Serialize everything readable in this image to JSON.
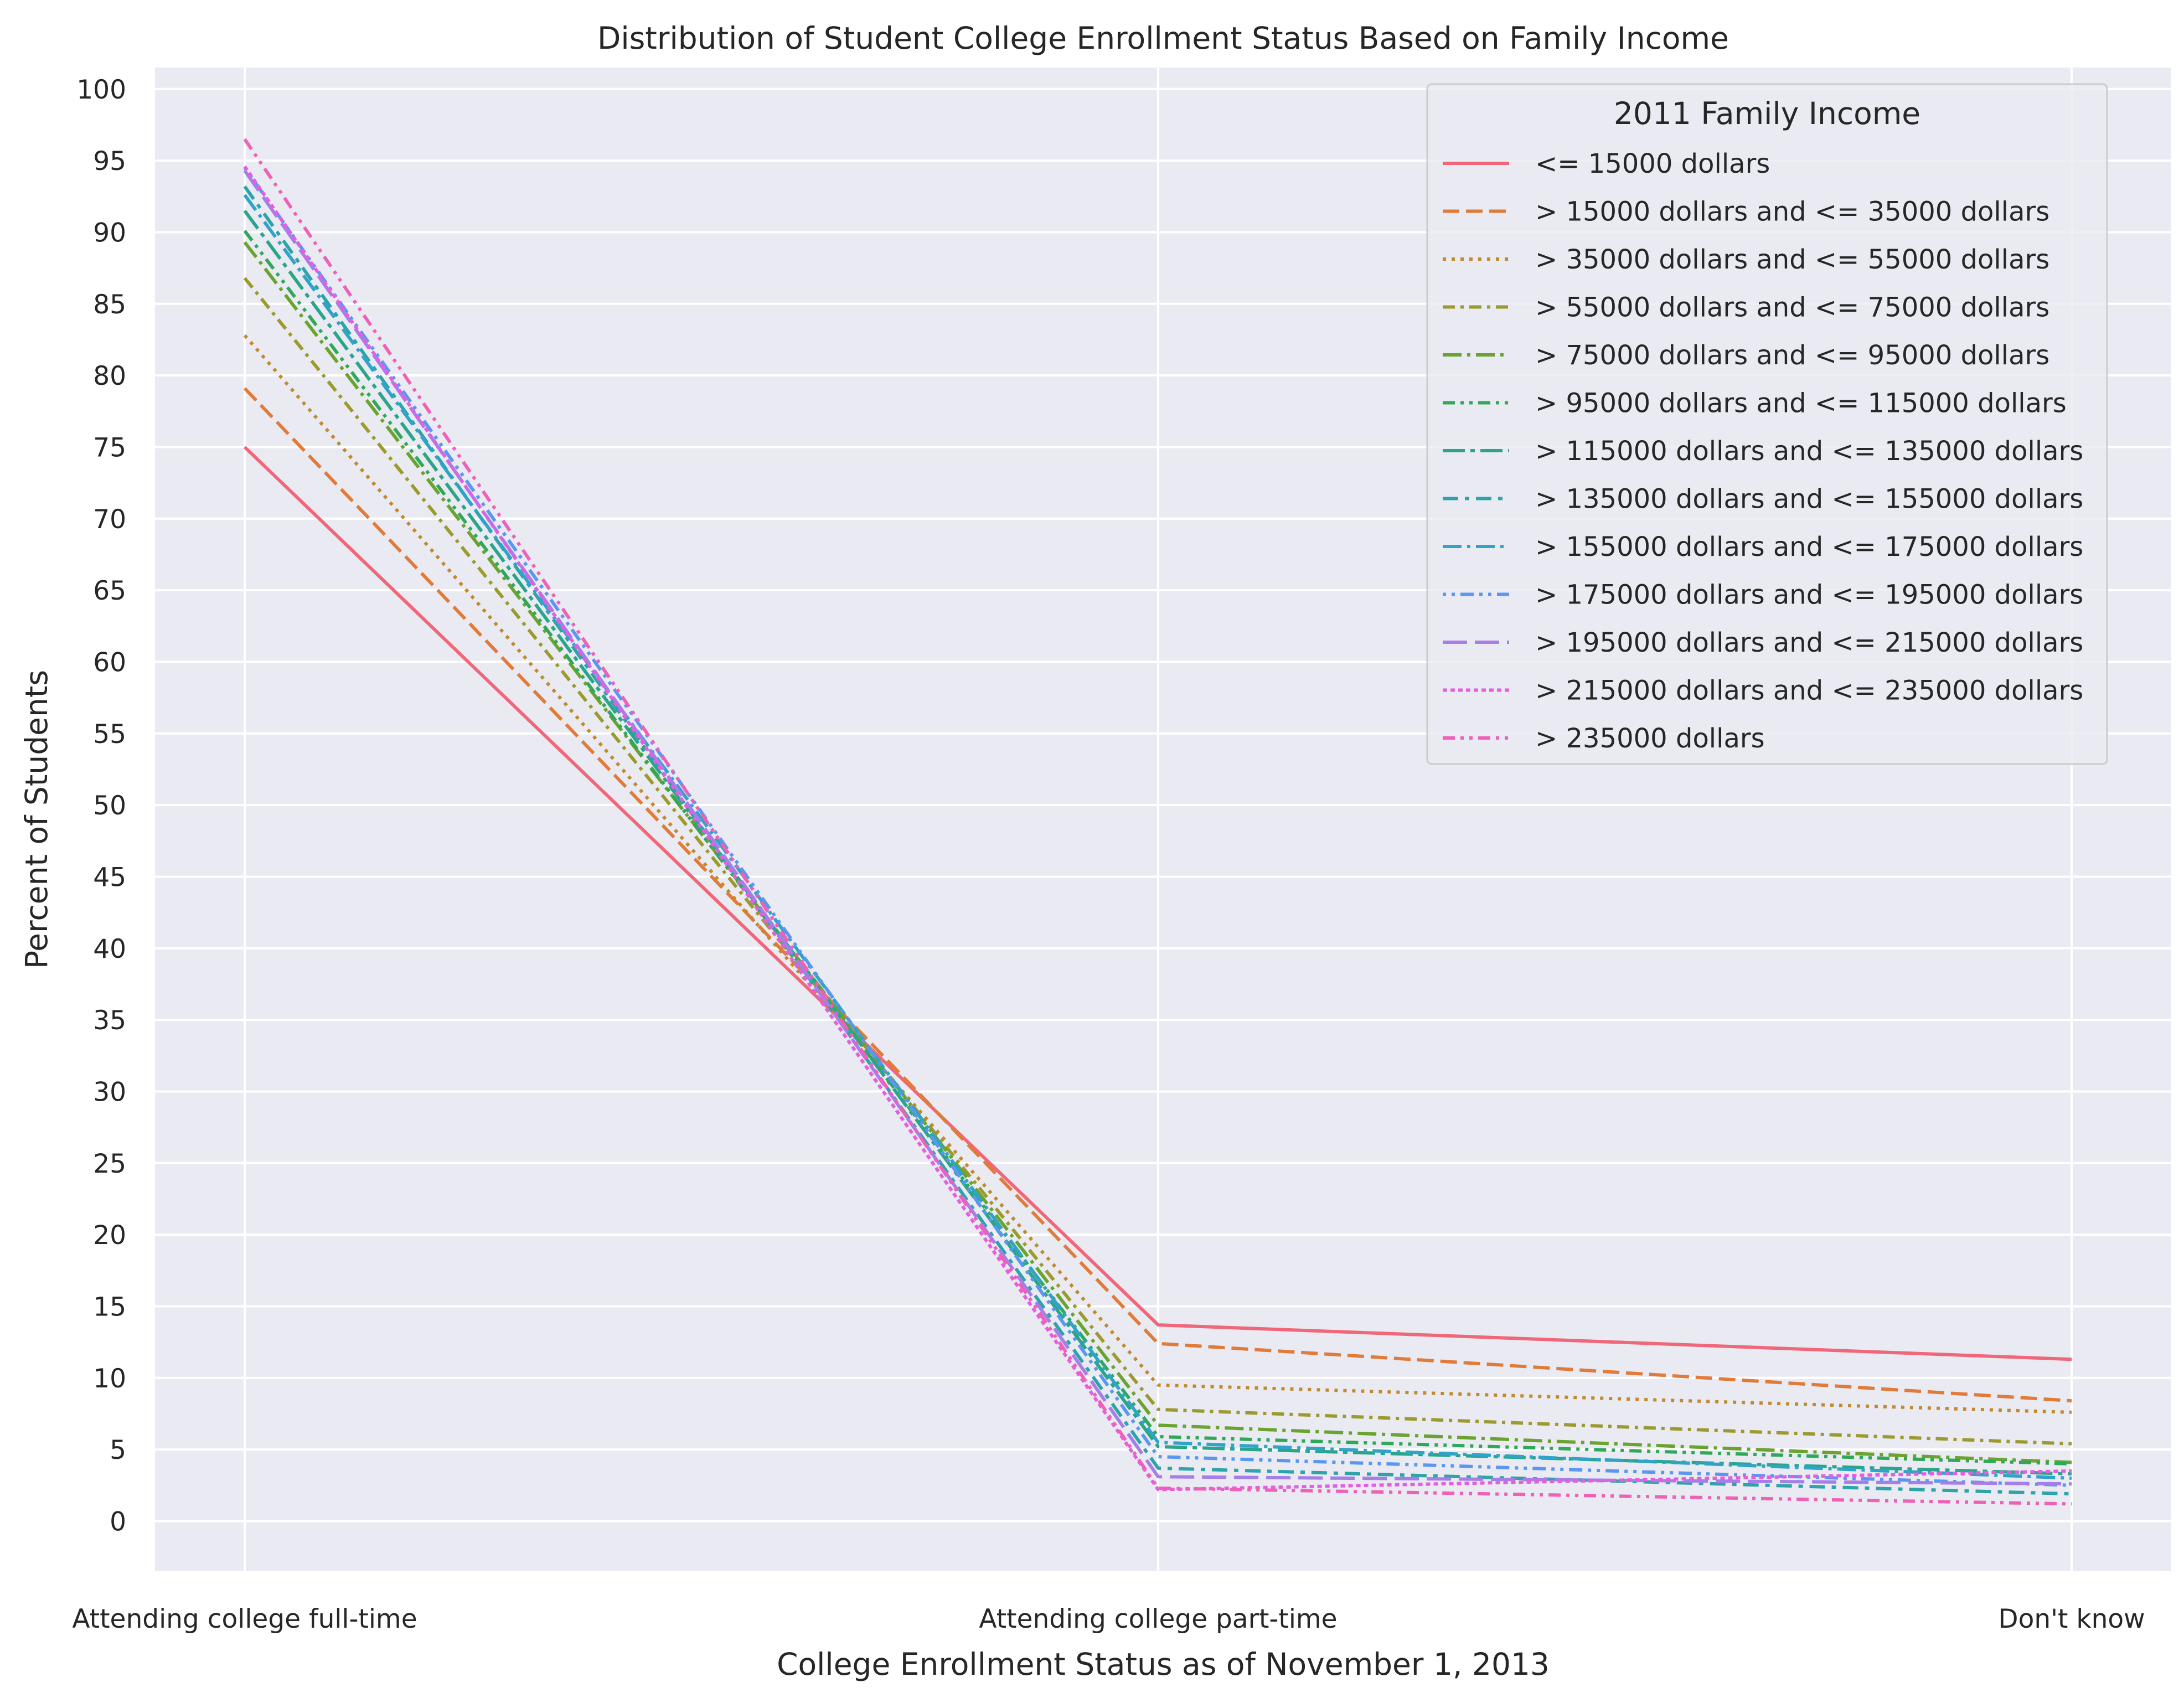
{
  "chart_data": {
    "type": "line",
    "title": "Distribution of Student College Enrollment Status Based on Family Income",
    "xlabel": "College Enrollment Status as of November 1, 2013",
    "ylabel": "Percent of Students",
    "categories": [
      "Attending college full-time",
      "Attending college part-time",
      "Don't know"
    ],
    "yticks": [
      "0",
      "5",
      "10",
      "15",
      "20",
      "25",
      "30",
      "35",
      "40",
      "45",
      "50",
      "55",
      "60",
      "65",
      "70",
      "75",
      "80",
      "85",
      "90",
      "95",
      "100"
    ],
    "ylim": [
      -3.5,
      101.5
    ],
    "grid": true,
    "legend": {
      "title": "2011 Family Income",
      "placement": "top-right"
    },
    "series": [
      {
        "name": "<= 15000 dollars",
        "values": [
          75.0,
          13.7,
          11.3
        ],
        "color": "#f0677a",
        "dash": "solid"
      },
      {
        "name": "> 15000 dollars and <= 35000 dollars",
        "values": [
          79.1,
          12.4,
          8.4
        ],
        "color": "#e07b39",
        "dash": "dashed"
      },
      {
        "name": "> 35000 dollars and <= 55000 dollars",
        "values": [
          82.8,
          9.5,
          7.6
        ],
        "color": "#c28a2e",
        "dash": "dotted"
      },
      {
        "name": "> 55000 dollars and <= 75000 dollars",
        "values": [
          86.8,
          7.8,
          5.4
        ],
        "color": "#9c9a2e",
        "dash": "dashdot"
      },
      {
        "name": "> 75000 dollars and <= 95000 dollars",
        "values": [
          89.3,
          6.7,
          4.1
        ],
        "color": "#6aa32f",
        "dash": "dashdotlong"
      },
      {
        "name": "> 95000 dollars and <= 115000 dollars",
        "values": [
          90.1,
          5.9,
          4.0
        ],
        "color": "#30a85a",
        "dash": "dashdotdot"
      },
      {
        "name": "> 115000 dollars and <= 135000 dollars",
        "values": [
          91.5,
          5.2,
          3.3
        ],
        "color": "#2aa58a",
        "dash": "longdashdot"
      },
      {
        "name": "> 135000 dollars and <= 155000 dollars",
        "values": [
          93.2,
          3.7,
          1.9
        ],
        "color": "#2ea3a8",
        "dash": "dashdot2"
      },
      {
        "name": "> 155000 dollars and <= 175000 dollars",
        "values": [
          92.6,
          5.5,
          3.0
        ],
        "color": "#2fa4c8",
        "dash": "dashdotlong"
      },
      {
        "name": "> 175000 dollars and <= 195000 dollars",
        "values": [
          94.5,
          4.5,
          2.5
        ],
        "color": "#5b97f0",
        "dash": "dotdotdash"
      },
      {
        "name": "> 195000 dollars and <= 215000 dollars",
        "values": [
          94.3,
          3.1,
          2.6
        ],
        "color": "#a57ee8",
        "dash": "longdash"
      },
      {
        "name": "> 215000 dollars and <= 235000 dollars",
        "values": [
          94.6,
          2.2,
          3.5
        ],
        "color": "#e35fe0",
        "dash": "densedot"
      },
      {
        "name": "> 235000 dollars",
        "values": [
          96.5,
          2.3,
          1.2
        ],
        "color": "#ef60b7",
        "dash": "dashdotdot"
      }
    ]
  }
}
